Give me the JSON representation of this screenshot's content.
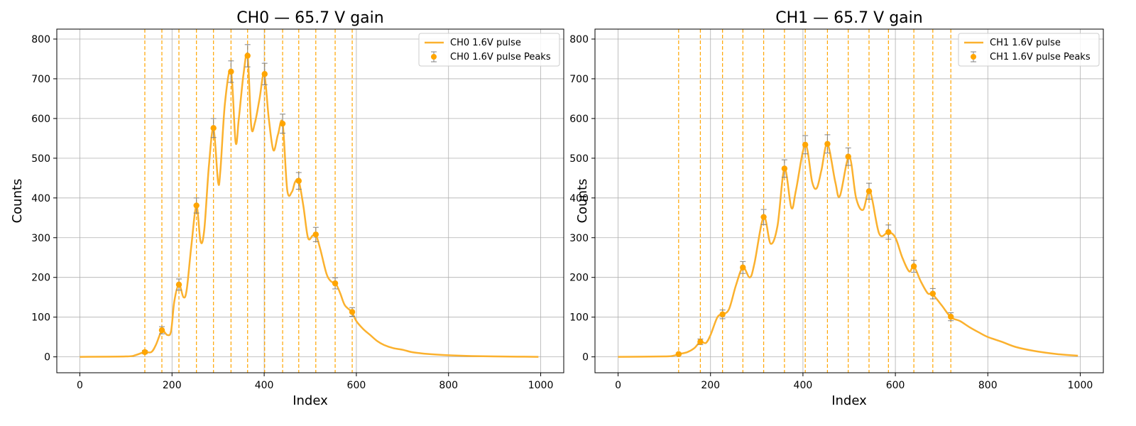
{
  "chart_data": [
    {
      "type": "line",
      "title": "CH0 — 65.7 V gain",
      "xlabel": "Index",
      "ylabel": "Counts",
      "xlim": [
        -50,
        1050
      ],
      "ylim": [
        -40,
        825
      ],
      "xticks": [
        0,
        200,
        400,
        600,
        800,
        1000
      ],
      "yticks": [
        0,
        100,
        200,
        300,
        400,
        500,
        600,
        700,
        800
      ],
      "grid": true,
      "legend_position": "top-right",
      "colors": {
        "line": "#fbb12e",
        "peaks": "#ffa500",
        "vline": "#ffa500",
        "errorbar": "#808080"
      },
      "series": [
        {
          "name": "CH0 1.6V pulse",
          "x": [
            0,
            100,
            120,
            140,
            155,
            165,
            178,
            190,
            198,
            205,
            215,
            225,
            232,
            242,
            253,
            262,
            270,
            280,
            290,
            300,
            305,
            315,
            328,
            338,
            345,
            355,
            364,
            372,
            380,
            390,
            400,
            410,
            420,
            430,
            440,
            450,
            460,
            467,
            475,
            485,
            495,
            505,
            512,
            522,
            535,
            545,
            555,
            565,
            575,
            590,
            600,
            615,
            630,
            645,
            660,
            680,
            700,
            720,
            740,
            770,
            800,
            850,
            900,
            950,
            995
          ],
          "values": [
            0,
            1,
            4,
            12,
            12,
            30,
            65,
            55,
            65,
            140,
            182,
            150,
            170,
            280,
            380,
            290,
            320,
            480,
            575,
            440,
            470,
            640,
            720,
            540,
            600,
            710,
            758,
            580,
            590,
            650,
            712,
            600,
            520,
            560,
            588,
            420,
            415,
            440,
            443,
            380,
            300,
            305,
            308,
            270,
            210,
            190,
            185,
            160,
            130,
            113,
            90,
            70,
            55,
            40,
            30,
            22,
            18,
            12,
            9,
            6,
            4,
            2,
            1,
            0.5,
            0
          ]
        },
        {
          "name": "CH0 1.6V pulse Peaks",
          "type": "errorbar",
          "x": [
            141,
            178,
            215,
            253,
            290,
            328,
            364,
            401,
            440,
            475,
            512,
            554,
            591
          ],
          "values": [
            12,
            67,
            182,
            381,
            576,
            718,
            758,
            712,
            587,
            443,
            308,
            185,
            113
          ],
          "errors": [
            4,
            9,
            14,
            19,
            24,
            27,
            28,
            27,
            24,
            21,
            18,
            14,
            11
          ]
        }
      ],
      "vlines": [
        141,
        178,
        215,
        253,
        290,
        328,
        364,
        401,
        440,
        475,
        512,
        554,
        591
      ]
    },
    {
      "type": "line",
      "title": "CH1 — 65.7 V gain",
      "xlabel": "Index",
      "ylabel": "Counts",
      "xlim": [
        -50,
        1050
      ],
      "ylim": [
        -40,
        825
      ],
      "xticks": [
        0,
        200,
        400,
        600,
        800,
        1000
      ],
      "yticks": [
        0,
        100,
        200,
        300,
        400,
        500,
        600,
        700,
        800
      ],
      "grid": true,
      "legend_position": "top-right",
      "colors": {
        "line": "#fbb12e",
        "peaks": "#ffa500",
        "vline": "#ffa500",
        "errorbar": "#808080"
      },
      "series": [
        {
          "name": "CH1 1.6V pulse",
          "x": [
            0,
            100,
            120,
            132,
            150,
            165,
            178,
            190,
            200,
            215,
            226,
            240,
            255,
            270,
            285,
            295,
            315,
            330,
            345,
            360,
            375,
            385,
            405,
            420,
            430,
            440,
            453,
            470,
            480,
            500,
            515,
            530,
            545,
            565,
            585,
            600,
            615,
            630,
            640,
            655,
            670,
            680,
            700,
            720,
            740,
            760,
            780,
            800,
            830,
            860,
            900,
            950,
            995
          ],
          "values": [
            0,
            1,
            3,
            7,
            12,
            22,
            38,
            35,
            55,
            100,
            107,
            120,
            180,
            225,
            200,
            235,
            352,
            285,
            330,
            474,
            375,
            420,
            534,
            440,
            425,
            470,
            536,
            440,
            405,
            504,
            400,
            370,
            417,
            310,
            314,
            300,
            250,
            215,
            228,
            190,
            160,
            158,
            130,
            100,
            90,
            75,
            62,
            50,
            38,
            25,
            15,
            7,
            3
          ]
        },
        {
          "name": "CH1 1.6V pulse Peaks",
          "type": "errorbar",
          "x": [
            131,
            178,
            226,
            270,
            315,
            360,
            405,
            453,
            498,
            543,
            585,
            640,
            681,
            720
          ],
          "values": [
            7,
            38,
            107,
            225,
            352,
            474,
            534,
            536,
            504,
            417,
            314,
            228,
            159,
            101
          ],
          "errors": [
            3,
            7,
            11,
            15,
            19,
            22,
            23,
            23,
            22,
            20,
            18,
            15,
            13,
            10
          ]
        }
      ],
      "vlines": [
        131,
        178,
        226,
        270,
        315,
        360,
        405,
        453,
        498,
        543,
        585,
        640,
        681,
        720
      ]
    }
  ]
}
